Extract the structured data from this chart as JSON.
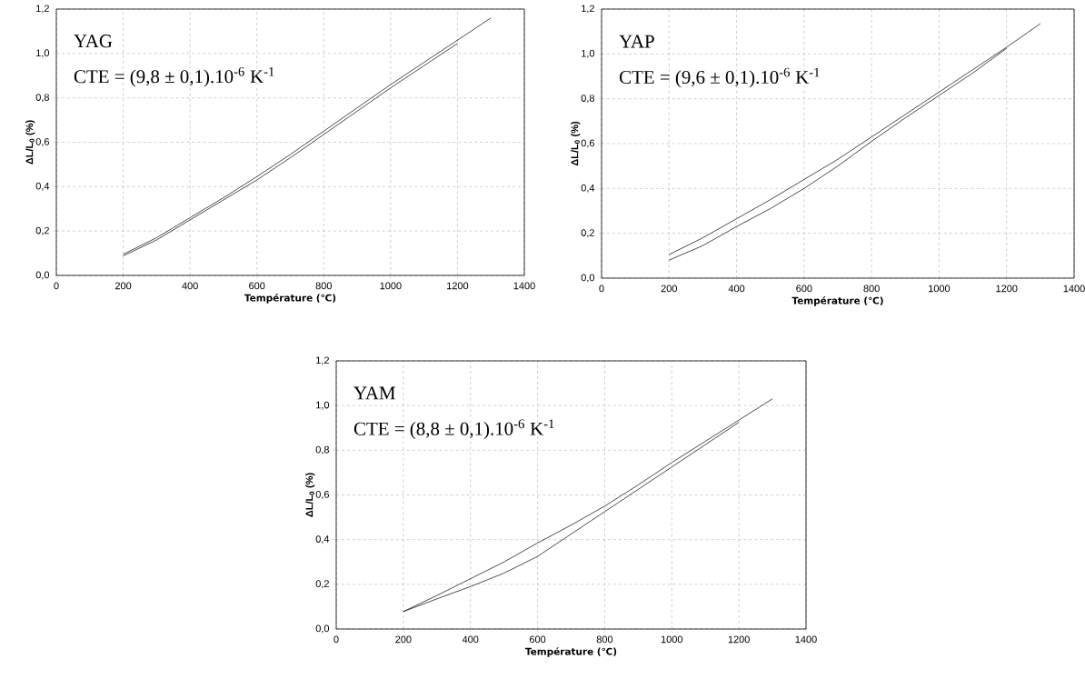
{
  "chart_data": [
    {
      "type": "line",
      "xlabel": "Température (℃)",
      "ylabel": "ΔL/L$_{0}$ (%)",
      "annotations": [
        "YAG",
        "CTE = (9,8 ± 0,1).10$^{-6}$ K$^{-1}$"
      ],
      "x": [
        200,
        300,
        400,
        500,
        600,
        700,
        800,
        900,
        1000,
        1100,
        1200,
        1300
      ],
      "series": [
        {
          "color": "#000000",
          "values": [
            0.095,
            0.17,
            0.26,
            0.35,
            0.445,
            0.545,
            0.65,
            0.755,
            0.86,
            0.96,
            1.06,
            1.16
          ]
        },
        {
          "color": "#000000",
          "x": [
            200,
            300,
            400,
            500,
            600,
            700,
            800,
            900,
            1000,
            1100,
            1200
          ],
          "values": [
            0.088,
            0.16,
            0.25,
            0.34,
            0.43,
            0.53,
            0.635,
            0.74,
            0.845,
            0.945,
            1.045
          ]
        }
      ],
      "xlim": [
        0,
        1400
      ],
      "xticks": [
        0,
        200,
        400,
        600,
        800,
        1000,
        1200,
        1400
      ],
      "ylim": [
        0,
        1.2
      ],
      "yticks": [
        {
          "value": 0,
          "label": "0,0"
        },
        {
          "value": 0.2,
          "label": "0,2"
        },
        {
          "value": 0.4,
          "label": "0,4"
        },
        {
          "value": 0.6,
          "label": "0,6"
        },
        {
          "value": 0.8,
          "label": "0,8"
        },
        {
          "value": 1.0,
          "label": "1,0"
        },
        {
          "value": 1.2,
          "label": "1,2"
        }
      ],
      "grid": true
    },
    {
      "type": "line",
      "xlabel": "Température (℃)",
      "ylabel": "ΔL/L$_{0}$ (%)",
      "annotations": [
        "YAP",
        "CTE = (9,6 ± 0,1).10$^{-6}$ K$^{-1}$"
      ],
      "x": [
        200,
        300,
        400,
        500,
        600,
        700,
        800,
        900,
        1000,
        1100,
        1200,
        1300
      ],
      "series": [
        {
          "color": "#000000",
          "values": [
            0.105,
            0.18,
            0.265,
            0.35,
            0.44,
            0.53,
            0.63,
            0.73,
            0.83,
            0.93,
            1.03,
            1.135
          ]
        },
        {
          "color": "#000000",
          "x": [
            200,
            300,
            400,
            500,
            600,
            700,
            800,
            900,
            1000,
            1100,
            1200
          ],
          "values": [
            0.08,
            0.145,
            0.23,
            0.31,
            0.4,
            0.5,
            0.61,
            0.715,
            0.815,
            0.915,
            1.025
          ]
        }
      ],
      "xlim": [
        0,
        1400
      ],
      "xticks": [
        0,
        200,
        400,
        600,
        800,
        1000,
        1200,
        1400
      ],
      "ylim": [
        0,
        1.2
      ],
      "yticks": [
        {
          "value": 0,
          "label": "0,0"
        },
        {
          "value": 0.2,
          "label": "0,2"
        },
        {
          "value": 0.4,
          "label": "0,4"
        },
        {
          "value": 0.6,
          "label": "0,6"
        },
        {
          "value": 0.8,
          "label": "0,8"
        },
        {
          "value": 1.0,
          "label": "1,0"
        },
        {
          "value": 1.2,
          "label": "1,2"
        }
      ],
      "grid": true
    },
    {
      "type": "line",
      "xlabel": "Température (℃)",
      "ylabel": "ΔL/L$_{0}$ (%)",
      "annotations": [
        "YAM",
        "CTE = (8,8 ± 0,1).10$^{-6}$ K$^{-1}$"
      ],
      "x": [
        200,
        300,
        400,
        500,
        600,
        700,
        800,
        900,
        1000,
        1100,
        1200,
        1300
      ],
      "series": [
        {
          "color": "#000000",
          "values": [
            0.078,
            0.15,
            0.225,
            0.3,
            0.385,
            0.465,
            0.55,
            0.645,
            0.745,
            0.84,
            0.935,
            1.03
          ]
        },
        {
          "color": "#000000",
          "x": [
            200,
            300,
            400,
            500,
            600,
            700,
            800,
            900,
            1000,
            1100,
            1200
          ],
          "values": [
            0.078,
            0.135,
            0.19,
            0.25,
            0.325,
            0.425,
            0.525,
            0.625,
            0.725,
            0.825,
            0.925
          ]
        }
      ],
      "xlim": [
        0,
        1400
      ],
      "xticks": [
        0,
        200,
        400,
        600,
        800,
        1000,
        1200,
        1400
      ],
      "ylim": [
        0,
        1.2
      ],
      "yticks": [
        {
          "value": 0,
          "label": "0,0"
        },
        {
          "value": 0.2,
          "label": "0,2"
        },
        {
          "value": 0.4,
          "label": "0,4"
        },
        {
          "value": 0.6,
          "label": "0,6"
        },
        {
          "value": 0.8,
          "label": "0,8"
        },
        {
          "value": 1.0,
          "label": "1,0"
        },
        {
          "value": 1.2,
          "label": "1,2"
        }
      ],
      "grid": true
    }
  ]
}
